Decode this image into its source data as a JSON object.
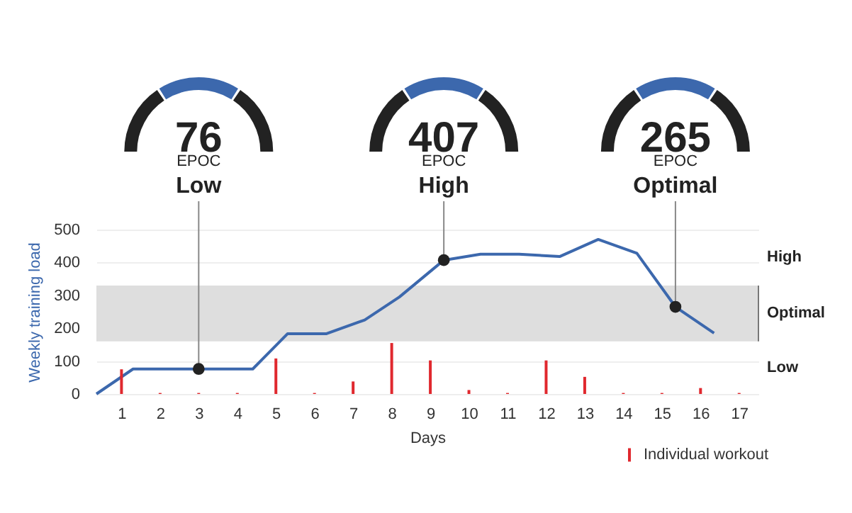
{
  "chart_data": {
    "type": "line",
    "xlabel": "Days",
    "ylabel": "Weekly training load",
    "xlim": [
      0.35,
      17.5
    ],
    "xticks": [
      1,
      2,
      3,
      4,
      5,
      6,
      7,
      8,
      9,
      10,
      11,
      12,
      13,
      14,
      15,
      16,
      17
    ],
    "ylim": [
      0,
      500
    ],
    "yticks": [
      0,
      100,
      200,
      300,
      400,
      500
    ],
    "grid": "y",
    "legend": "bottom right",
    "series": [
      {
        "type": "bar",
        "name": "Individual workout",
        "color": "#e0282e",
        "x": [
          1,
          2,
          3,
          4,
          5,
          6,
          7,
          8,
          9,
          10,
          11,
          12,
          13,
          14,
          15,
          16,
          17
        ],
        "values": [
          75,
          3,
          3,
          3,
          108,
          3,
          38,
          155,
          102,
          12,
          3,
          102,
          52,
          3,
          3,
          18,
          3
        ]
      },
      {
        "color": "#3c68ad",
        "x": [
          0.35,
          1.3,
          4.4,
          5.3,
          6.3,
          7.3,
          8.2,
          9.35,
          10.3,
          11.3,
          12.35,
          13.35,
          14.35,
          15.35,
          16.35
        ],
        "values": [
          0,
          76,
          76,
          183,
          183,
          225,
          295,
          407,
          425,
          425,
          418,
          470,
          428,
          265,
          185
        ]
      },
      {
        "type": "scatter",
        "color": "#222222",
        "x": [
          3,
          9.35,
          15.35
        ],
        "values": [
          76,
          407,
          265
        ]
      }
    ],
    "bands": [
      {
        "axis": "y",
        "from": 160,
        "to": 330,
        "label": "Optimal",
        "color": "#dedede"
      }
    ],
    "annotations": [
      "High",
      "Low",
      {
        "text": "76",
        "x": 3,
        "y": 76
      },
      "EPOC",
      "Low",
      {
        "text": "407",
        "x": 9.35,
        "y": 407
      },
      "EPOC",
      "High",
      {
        "text": "265",
        "x": 15.35,
        "y": 265
      },
      "EPOC",
      "Optimal"
    ]
  }
}
